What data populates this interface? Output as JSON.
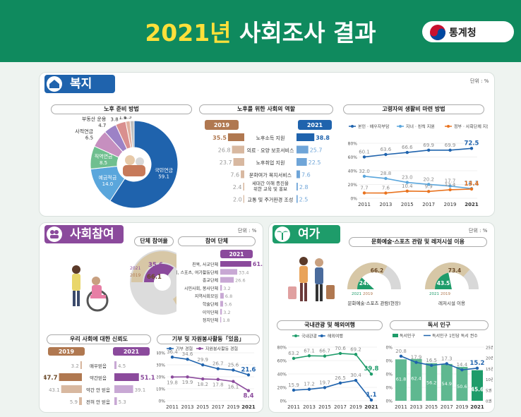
{
  "header": {
    "year": "2021년",
    "rest": " 사회조사 결과",
    "org": "통계청"
  },
  "unit": "단위 : %",
  "welfare": {
    "title": "복지",
    "prep": {
      "title": "노후 준비 방법",
      "slices": [
        {
          "label": "국민연금",
          "value": 59.1,
          "color": "#1f63ad"
        },
        {
          "label": "예금적금",
          "value": 14.0,
          "color": "#5aa6dc"
        },
        {
          "label": "직역연금",
          "value": 8.5,
          "color": "#6fbf8f"
        },
        {
          "label": "사적연금",
          "value": 6.5,
          "color": "#c68fbf"
        },
        {
          "label": "부동산 운용",
          "value": 4.7,
          "color": "#9c82c6"
        },
        {
          "label": "퇴직 급여",
          "value": 3.8,
          "color": "#d98f8f"
        },
        {
          "label": "주택연금",
          "value": 1.6,
          "color": "#e0b0a0"
        },
        {
          "label": "기타",
          "value": 1.5,
          "color": "#c0c0c0"
        }
      ]
    },
    "role": {
      "title": "노후를 위한 사회의 역할",
      "y2019": "2019",
      "y2021": "2021",
      "items": [
        {
          "label": "노후소득 지원",
          "v2019": 35.5,
          "v2021": 38.8
        },
        {
          "label": "의료 · 요양 보호서비스",
          "v2019": 26.8,
          "v2021": 25.7
        },
        {
          "label": "노후취업 지원",
          "v2019": 23.7,
          "v2021": 22.5
        },
        {
          "label": "문화여가 복지서비스",
          "v2019": 7.6,
          "v2021": 7.6
        },
        {
          "label": "세대간 이해 증진을 위한 교육 및 홍보",
          "v2019": 2.4,
          "v2021": 2.8
        },
        {
          "label": "교통 및 주거환경 조성",
          "v2019": 2.0,
          "v2021": 2.5
        }
      ]
    },
    "living": {
      "title": "고령자의 생활비 마련 방법",
      "legend": [
        "본인 · 배우자부담",
        "자녀 · 친척 지원",
        "정부 · 사회단체 지원"
      ],
      "years": [
        "2011",
        "2013",
        "2015",
        "2017",
        "2019",
        "2021"
      ],
      "series": [
        {
          "name": "본인 · 배우자부담",
          "values": [
            60.1,
            63.6,
            66.6,
            69.9,
            69.9,
            72.5
          ],
          "color": "#1f63ad"
        },
        {
          "name": "자녀 · 친척 지원",
          "values": [
            32.0,
            28.8,
            23.0,
            20.2,
            17.7,
            14.1
          ],
          "color": "#5aa6dc"
        },
        {
          "name": "정부 · 사회단체 지원",
          "values": [
            7.7,
            7.6,
            10.4,
            9.9,
            12.4,
            13.4
          ],
          "color": "#e9731f"
        }
      ],
      "yticks": [
        "80%",
        "60%",
        "40%",
        "20%",
        "0%"
      ]
    }
  },
  "social": {
    "title": "사회참여",
    "join": {
      "title1": "단체 참여율",
      "title2": "참여 단체",
      "r2021": 35.6,
      "r2019": 66.1,
      "y2021": "2021",
      "y2019": "2019",
      "items": [
        {
          "label": "친목, 사교단체",
          "value": 61.0
        },
        {
          "label": "취미, 스포츠, 여가활동단체",
          "value": 33.4
        },
        {
          "label": "종교단체",
          "value": 26.6
        },
        {
          "label": "시민사회, 봉사단체",
          "value": 3.2
        },
        {
          "label": "지역사회모임",
          "value": 6.8
        },
        {
          "label": "학술단체",
          "value": 5.6
        },
        {
          "label": "이익단체",
          "value": 3.2
        },
        {
          "label": "정치단체",
          "value": 1.8
        }
      ]
    },
    "trust": {
      "title": "우리 사회에 대한 신뢰도",
      "y2019": "2019",
      "y2021": "2021",
      "items": [
        {
          "label": "매우믿음",
          "v2019": 3.2,
          "v2021": 4.5
        },
        {
          "label": "약간믿음",
          "v2019": 47.7,
          "v2021": 51.1
        },
        {
          "label": "약간 안 믿음",
          "v2019": 43.1,
          "v2021": 39.1
        },
        {
          "label": "전혀 안 믿음",
          "v2019": 5.9,
          "v2021": 5.3
        }
      ]
    },
    "donate": {
      "title": "기부 및 자원봉사활동「있음」",
      "legend": [
        "기부 경험",
        "자원봉사활동 경험"
      ],
      "years": [
        "2011",
        "2013",
        "2015",
        "2017",
        "2019",
        "2021"
      ],
      "series": [
        {
          "name": "기부 경험",
          "values": [
            36.4,
            34.6,
            29.9,
            26.7,
            25.6,
            21.6
          ],
          "color": "#1f63ad"
        },
        {
          "name": "자원봉사활동 경험",
          "values": [
            19.8,
            19.9,
            18.2,
            17.8,
            16.1,
            8.4
          ],
          "color": "#8b4a9c"
        }
      ],
      "yticks": [
        "40%",
        "30%",
        "20%",
        "10%",
        "0%"
      ]
    }
  },
  "leisure": {
    "title": "여가",
    "culture": {
      "title": "문화예술·스포츠 관람 및 레저시설 이용",
      "gauges": [
        {
          "label": "문화예술·스포츠 관람(현장)",
          "v2021": 24.1,
          "v2019": 66.2
        },
        {
          "label": "레저시설 이용",
          "v2021": 43.5,
          "v2019": 73.4
        }
      ],
      "y2021": "2021",
      "y2019": "2019"
    },
    "travel": {
      "title": "국내관광 및 해외여행",
      "legend": [
        "국내관광",
        "해외여행"
      ],
      "years": [
        "2011",
        "2013",
        "2015",
        "2017",
        "2019",
        "2021"
      ],
      "series": [
        {
          "name": "국내관광",
          "values": [
            63.2,
            67.1,
            66.7,
            70.6,
            69.2,
            39.8
          ],
          "color": "#1e9c6a"
        },
        {
          "name": "해외여행",
          "values": [
            15.9,
            17.2,
            19.7,
            26.5,
            30.4,
            1.1
          ],
          "color": "#1f63ad"
        }
      ],
      "yticks": [
        "80%",
        "60%",
        "40%",
        "20%",
        "0%"
      ]
    },
    "reading": {
      "title": "독서 인구",
      "legend": [
        "독서인구",
        "독서인구 1인당 독서 권수"
      ],
      "years": [
        "2011",
        "2013",
        "2015",
        "2017",
        "2019",
        "2021"
      ],
      "bars": [
        61.8,
        62.4,
        56.2,
        54.9,
        50.6,
        45.6
      ],
      "line": [
        20.8,
        17.9,
        16.5,
        17.3,
        14.4,
        15.2
      ],
      "yticks": [
        "80%",
        "60%",
        "40%",
        "20%",
        "0%"
      ],
      "y2ticks": [
        "25권",
        "20권",
        "15권",
        "10권",
        "5권",
        "0권"
      ]
    }
  },
  "chart_data": [
    {
      "type": "pie",
      "title": "노후 준비 방법",
      "categories": [
        "국민연금",
        "예금적금",
        "직역연금",
        "사적연금",
        "부동산 운용",
        "퇴직 급여",
        "주택연금",
        "기타"
      ],
      "values": [
        59.1,
        14.0,
        8.5,
        6.5,
        4.7,
        3.8,
        1.6,
        1.5
      ]
    },
    {
      "type": "bar",
      "title": "노후를 위한 사회의 역할",
      "categories": [
        "노후소득 지원",
        "의료 · 요양 보호서비스",
        "노후취업 지원",
        "문화여가 복지서비스",
        "세대간 이해 증진을 위한 교육 및 홍보",
        "교통 및 주거환경 조성"
      ],
      "series": [
        {
          "name": "2019",
          "values": [
            35.5,
            26.8,
            23.7,
            7.6,
            2.4,
            2.0
          ]
        },
        {
          "name": "2021",
          "values": [
            38.8,
            25.7,
            22.5,
            7.6,
            2.8,
            2.5
          ]
        }
      ]
    },
    {
      "type": "line",
      "title": "고령자의 생활비 마련 방법",
      "x": [
        "2011",
        "2013",
        "2015",
        "2017",
        "2019",
        "2021"
      ],
      "series": [
        {
          "name": "본인 · 배우자부담",
          "values": [
            60.1,
            63.6,
            66.6,
            69.9,
            69.9,
            72.5
          ]
        },
        {
          "name": "자녀 · 친척 지원",
          "values": [
            32.0,
            28.8,
            23.0,
            20.2,
            17.7,
            14.1
          ]
        },
        {
          "name": "정부 · 사회단체 지원",
          "values": [
            7.7,
            7.6,
            10.4,
            9.9,
            12.4,
            13.4
          ]
        }
      ],
      "ylim": [
        0,
        80
      ]
    },
    {
      "type": "pie",
      "title": "단체 참여율",
      "series": [
        {
          "name": "2021",
          "values": [
            35.6
          ]
        },
        {
          "name": "2019",
          "values": [
            66.1
          ]
        }
      ]
    },
    {
      "type": "bar",
      "title": "참여 단체",
      "categories": [
        "친목, 사교단체",
        "취미, 스포츠, 여가활동단체",
        "종교단체",
        "시민사회, 봉사단체",
        "지역사회모임",
        "학술단체",
        "이익단체",
        "정치단체"
      ],
      "series": [
        {
          "name": "2021",
          "values": [
            61.0,
            33.4,
            26.6,
            3.2,
            6.8,
            5.6,
            3.2,
            1.8
          ]
        }
      ]
    },
    {
      "type": "bar",
      "title": "우리 사회에 대한 신뢰도",
      "categories": [
        "매우믿음",
        "약간믿음",
        "약간 안 믿음",
        "전혀 안 믿음"
      ],
      "series": [
        {
          "name": "2019",
          "values": [
            3.2,
            47.7,
            43.1,
            5.9
          ]
        },
        {
          "name": "2021",
          "values": [
            4.5,
            51.1,
            39.1,
            5.3
          ]
        }
      ]
    },
    {
      "type": "line",
      "title": "기부 및 자원봉사활동「있음」",
      "x": [
        "2011",
        "2013",
        "2015",
        "2017",
        "2019",
        "2021"
      ],
      "series": [
        {
          "name": "기부 경험",
          "values": [
            36.4,
            34.6,
            29.9,
            26.7,
            25.6,
            21.6
          ]
        },
        {
          "name": "자원봉사활동 경험",
          "values": [
            19.8,
            19.9,
            18.2,
            17.8,
            16.1,
            8.4
          ]
        }
      ],
      "ylim": [
        0,
        40
      ]
    },
    {
      "type": "pie",
      "title": "문화예술·스포츠 관람 및 레저시설 이용",
      "categories": [
        "문화예술·스포츠 관람(현장)",
        "레저시설 이용"
      ],
      "series": [
        {
          "name": "2021",
          "values": [
            24.1,
            43.5
          ]
        },
        {
          "name": "2019",
          "values": [
            66.2,
            73.4
          ]
        }
      ]
    },
    {
      "type": "line",
      "title": "국내관광 및 해외여행",
      "x": [
        "2011",
        "2013",
        "2015",
        "2017",
        "2019",
        "2021"
      ],
      "series": [
        {
          "name": "국내관광",
          "values": [
            63.2,
            67.1,
            66.7,
            70.6,
            69.2,
            39.8
          ]
        },
        {
          "name": "해외여행",
          "values": [
            15.9,
            17.2,
            19.7,
            26.5,
            30.4,
            1.1
          ]
        }
      ],
      "ylim": [
        0,
        80
      ]
    },
    {
      "type": "bar",
      "title": "독서 인구",
      "x": [
        "2011",
        "2013",
        "2015",
        "2017",
        "2019",
        "2021"
      ],
      "series": [
        {
          "name": "독서인구",
          "values": [
            61.8,
            62.4,
            56.2,
            54.9,
            50.6,
            45.6
          ]
        },
        {
          "name": "독서인구 1인당 독서 권수",
          "values": [
            20.8,
            17.9,
            16.5,
            17.3,
            14.4,
            15.2
          ]
        }
      ],
      "ylim": [
        0,
        80
      ]
    }
  ]
}
